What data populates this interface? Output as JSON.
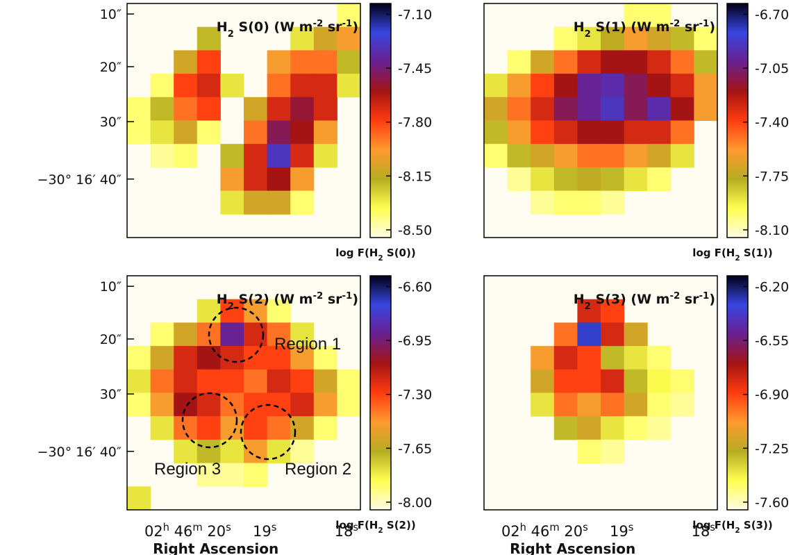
{
  "chart_data": [
    {
      "type": "heatmap",
      "title": [
        {
          "t": "H"
        },
        {
          "t": "2",
          "s": "sub"
        },
        {
          "t": " S(0) (W m"
        },
        {
          "t": "-2",
          "s": "sup"
        },
        {
          "t": " sr"
        },
        {
          "t": "-1",
          "s": "sup"
        },
        {
          "t": ")"
        }
      ],
      "colorbar_label": [
        {
          "t": "log F(H"
        },
        {
          "t": "2",
          "s": "sub"
        },
        {
          "t": " S(0))"
        }
      ],
      "yticklabels": [
        "10″",
        "20″",
        "30″",
        "−30° 16′ 40″"
      ],
      "clim": [
        -8.55,
        -7.03
      ],
      "cticks": [
        {
          "value": -7.1,
          "label": "-7.10"
        },
        {
          "value": -7.45,
          "label": "-7.45"
        },
        {
          "value": -7.8,
          "label": "-7.80"
        },
        {
          "value": -8.15,
          "label": "-8.15"
        },
        {
          "value": -8.5,
          "label": "-8.50"
        }
      ],
      "colormap": [
        "#fffbe6",
        "#ffff50",
        "#b6ac22",
        "#ff9a30",
        "#ff3c10",
        "#a41414",
        "#6a2090",
        "#3846e0",
        "#000018"
      ],
      "values": [
        [
          null,
          null,
          null,
          null,
          null,
          null,
          null,
          null,
          null,
          -8.4
        ],
        [
          null,
          null,
          null,
          -8.2,
          null,
          null,
          null,
          -8.3,
          -8.1,
          -8.0
        ],
        [
          null,
          null,
          -8.1,
          -7.8,
          null,
          null,
          -8.0,
          -7.9,
          -7.9,
          -8.2
        ],
        [
          null,
          -8.4,
          -7.8,
          -7.7,
          -8.3,
          null,
          -7.9,
          -7.7,
          -7.7,
          -8.3
        ],
        [
          -8.4,
          -8.2,
          -7.9,
          -7.8,
          null,
          -8.1,
          -7.7,
          -7.55,
          -7.7,
          null
        ],
        [
          -8.4,
          -8.3,
          -8.1,
          -8.4,
          null,
          -7.9,
          -7.5,
          -7.6,
          -8.0,
          null
        ],
        [
          null,
          -8.45,
          -8.4,
          null,
          -8.2,
          -7.7,
          -7.3,
          -7.7,
          -8.3,
          null
        ],
        [
          null,
          null,
          null,
          null,
          -8.0,
          -7.7,
          -7.6,
          -8.0,
          null,
          null
        ],
        [
          null,
          null,
          null,
          null,
          -8.3,
          -8.1,
          -8.1,
          -8.4,
          null,
          null
        ],
        [
          null,
          null,
          null,
          null,
          null,
          null,
          null,
          null,
          null,
          null
        ]
      ]
    },
    {
      "type": "heatmap",
      "title": [
        {
          "t": "H"
        },
        {
          "t": "2",
          "s": "sub"
        },
        {
          "t": " S(1) (W m"
        },
        {
          "t": "-2",
          "s": "sup"
        },
        {
          "t": " sr"
        },
        {
          "t": "-1",
          "s": "sup"
        },
        {
          "t": ")"
        }
      ],
      "colorbar_label": [
        {
          "t": "log F(H"
        },
        {
          "t": "2",
          "s": "sub"
        },
        {
          "t": " S(1))"
        }
      ],
      "clim": [
        -8.15,
        -6.63
      ],
      "cticks": [
        {
          "value": -6.7,
          "label": "-6.70"
        },
        {
          "value": -7.05,
          "label": "-7.05"
        },
        {
          "value": -7.4,
          "label": "-7.40"
        },
        {
          "value": -7.75,
          "label": "-7.75"
        },
        {
          "value": -8.1,
          "label": "-8.10"
        }
      ],
      "colormap": [
        "#fffbe6",
        "#ffff50",
        "#b6ac22",
        "#ff9a30",
        "#ff3c10",
        "#a41414",
        "#6a2090",
        "#3846e0",
        "#000018"
      ],
      "values": [
        [
          null,
          null,
          null,
          null,
          null,
          null,
          -8.0,
          -8.0,
          null,
          null
        ],
        [
          null,
          null,
          null,
          -8.0,
          -7.9,
          -7.75,
          -7.6,
          -7.7,
          -7.8,
          -8.0
        ],
        [
          null,
          -8.0,
          -7.7,
          -7.5,
          -7.3,
          -7.2,
          -7.2,
          -7.3,
          -7.5,
          -7.8
        ],
        [
          -7.9,
          -7.6,
          -7.4,
          -7.2,
          -7.0,
          -6.95,
          -7.1,
          -7.2,
          -7.3,
          -7.6
        ],
        [
          -7.7,
          -7.5,
          -7.3,
          -7.1,
          -7.0,
          -6.9,
          -7.1,
          -6.95,
          -7.2,
          -7.6
        ],
        [
          -7.8,
          -7.6,
          -7.4,
          -7.3,
          -7.2,
          -7.2,
          -7.3,
          -7.3,
          -7.5,
          null
        ],
        [
          -8.0,
          -7.8,
          -7.7,
          -7.6,
          -7.5,
          -7.5,
          -7.6,
          -7.7,
          -7.9,
          null
        ],
        [
          null,
          -8.05,
          -7.9,
          -7.8,
          -7.75,
          -7.8,
          -7.9,
          -8.0,
          null,
          null
        ],
        [
          null,
          null,
          -8.05,
          -8.0,
          -8.0,
          -8.05,
          null,
          null,
          null,
          null
        ],
        [
          null,
          null,
          null,
          null,
          null,
          null,
          null,
          null,
          null,
          null
        ]
      ]
    },
    {
      "type": "heatmap",
      "title": [
        {
          "t": "H"
        },
        {
          "t": "2",
          "s": "sub"
        },
        {
          "t": " S(2) (W m"
        },
        {
          "t": "-2",
          "s": "sup"
        },
        {
          "t": " sr"
        },
        {
          "t": "-1",
          "s": "sup"
        },
        {
          "t": ")"
        }
      ],
      "colorbar_label": [
        {
          "t": "log F(H"
        },
        {
          "t": "2",
          "s": "sub"
        },
        {
          "t": " S(2))"
        }
      ],
      "yticklabels": [
        "10″",
        "20″",
        "30″",
        "−30° 16′ 40″"
      ],
      "xticklabels": [
        [
          {
            "t": "02"
          },
          {
            "t": "h",
            "s": "sup"
          },
          {
            "t": " 46"
          },
          {
            "t": "m",
            "s": "sup"
          },
          {
            "t": " 20"
          },
          {
            "t": "s",
            "s": "sup"
          }
        ],
        [
          {
            "t": "19"
          },
          {
            "t": "s",
            "s": "sup"
          }
        ],
        [
          {
            "t": "18"
          },
          {
            "t": "s",
            "s": "sup"
          }
        ]
      ],
      "xlabel": "Right Ascension",
      "annotations": [
        "Region 1",
        "Region 2",
        "Region 3"
      ],
      "clim": [
        -8.05,
        -6.53
      ],
      "cticks": [
        {
          "value": -6.6,
          "label": "-6.60"
        },
        {
          "value": -6.95,
          "label": "-6.95"
        },
        {
          "value": -7.3,
          "label": "-7.30"
        },
        {
          "value": -7.65,
          "label": "-7.65"
        },
        {
          "value": -8.0,
          "label": "-8.00"
        }
      ],
      "colormap": [
        "#fffbe6",
        "#ffff50",
        "#b6ac22",
        "#ff9a30",
        "#ff3c10",
        "#a41414",
        "#6a2090",
        "#3846e0",
        "#000018"
      ],
      "values": [
        [
          null,
          null,
          null,
          null,
          null,
          null,
          null,
          null,
          null,
          null
        ],
        [
          null,
          null,
          null,
          -7.8,
          -7.3,
          -7.5,
          -7.9,
          null,
          null,
          null
        ],
        [
          null,
          -7.9,
          -7.6,
          -7.4,
          -6.9,
          -7.2,
          -7.4,
          -7.8,
          null,
          null
        ],
        [
          -7.9,
          -7.6,
          -7.2,
          -7.1,
          -7.2,
          -7.3,
          -7.3,
          -7.5,
          -7.9,
          null
        ],
        [
          -7.8,
          -7.4,
          -7.2,
          -7.3,
          -7.3,
          -7.4,
          -7.2,
          -7.3,
          -7.6,
          -7.9
        ],
        [
          -7.9,
          -7.5,
          -7.1,
          -7.2,
          -7.4,
          -7.3,
          -7.3,
          -7.2,
          -7.5,
          -7.9
        ],
        [
          null,
          -7.8,
          -7.4,
          -7.3,
          -7.5,
          -7.3,
          -7.4,
          -7.6,
          -7.9,
          null
        ],
        [
          null,
          null,
          -7.8,
          -7.7,
          -7.8,
          -7.5,
          -7.8,
          -7.95,
          null,
          null
        ],
        [
          null,
          null,
          null,
          -7.95,
          -7.95,
          -7.9,
          null,
          null,
          null,
          null
        ],
        [
          -7.8,
          null,
          null,
          null,
          null,
          null,
          null,
          null,
          null,
          null
        ]
      ]
    },
    {
      "type": "heatmap",
      "title": [
        {
          "t": "H"
        },
        {
          "t": "2",
          "s": "sub"
        },
        {
          "t": " S(3) (W m"
        },
        {
          "t": "-2",
          "s": "sup"
        },
        {
          "t": " sr"
        },
        {
          "t": "-1",
          "s": "sup"
        },
        {
          "t": ")"
        }
      ],
      "colorbar_label": [
        {
          "t": "log F(H"
        },
        {
          "t": "2",
          "s": "sub"
        },
        {
          "t": " S(3))"
        }
      ],
      "xticklabels": [
        [
          {
            "t": "02"
          },
          {
            "t": "h",
            "s": "sup"
          },
          {
            "t": " 46"
          },
          {
            "t": "m",
            "s": "sup"
          },
          {
            "t": " 20"
          },
          {
            "t": "s",
            "s": "sup"
          }
        ],
        [
          {
            "t": "19"
          },
          {
            "t": "s",
            "s": "sup"
          }
        ],
        [
          {
            "t": "18"
          },
          {
            "t": "s",
            "s": "sup"
          }
        ]
      ],
      "xlabel": "Right Ascension",
      "clim": [
        -7.65,
        -6.13
      ],
      "cticks": [
        {
          "value": -6.2,
          "label": "-6.20"
        },
        {
          "value": -6.55,
          "label": "-6.55"
        },
        {
          "value": -6.9,
          "label": "-6.90"
        },
        {
          "value": -7.25,
          "label": "-7.25"
        },
        {
          "value": -7.6,
          "label": "-7.60"
        }
      ],
      "colormap": [
        "#fffbe6",
        "#ffff50",
        "#b6ac22",
        "#ff9a30",
        "#ff3c10",
        "#a41414",
        "#6a2090",
        "#3846e0",
        "#000018"
      ],
      "values": [
        [
          null,
          null,
          null,
          null,
          null,
          null,
          null,
          null,
          null,
          null
        ],
        [
          null,
          null,
          null,
          null,
          -6.8,
          -6.9,
          null,
          null,
          null,
          null
        ],
        [
          null,
          null,
          null,
          -7.0,
          -6.3,
          -6.8,
          -7.2,
          null,
          null,
          null
        ],
        [
          null,
          null,
          -7.1,
          -6.8,
          -6.9,
          -7.3,
          -7.4,
          -7.5,
          null,
          null
        ],
        [
          null,
          null,
          -7.2,
          -6.9,
          -6.9,
          -6.8,
          -7.3,
          -7.45,
          -7.5,
          null
        ],
        [
          null,
          null,
          -7.4,
          -7.0,
          -7.1,
          -7.0,
          -7.2,
          -7.5,
          -7.55,
          null
        ],
        [
          null,
          null,
          null,
          -7.3,
          -7.2,
          -7.4,
          -7.5,
          -7.55,
          null,
          null
        ],
        [
          null,
          null,
          null,
          null,
          -7.5,
          -7.55,
          null,
          null,
          null,
          null
        ],
        [
          null,
          null,
          null,
          null,
          null,
          null,
          null,
          null,
          null,
          null
        ],
        [
          null,
          null,
          null,
          null,
          null,
          null,
          null,
          null,
          null,
          null
        ]
      ]
    }
  ]
}
